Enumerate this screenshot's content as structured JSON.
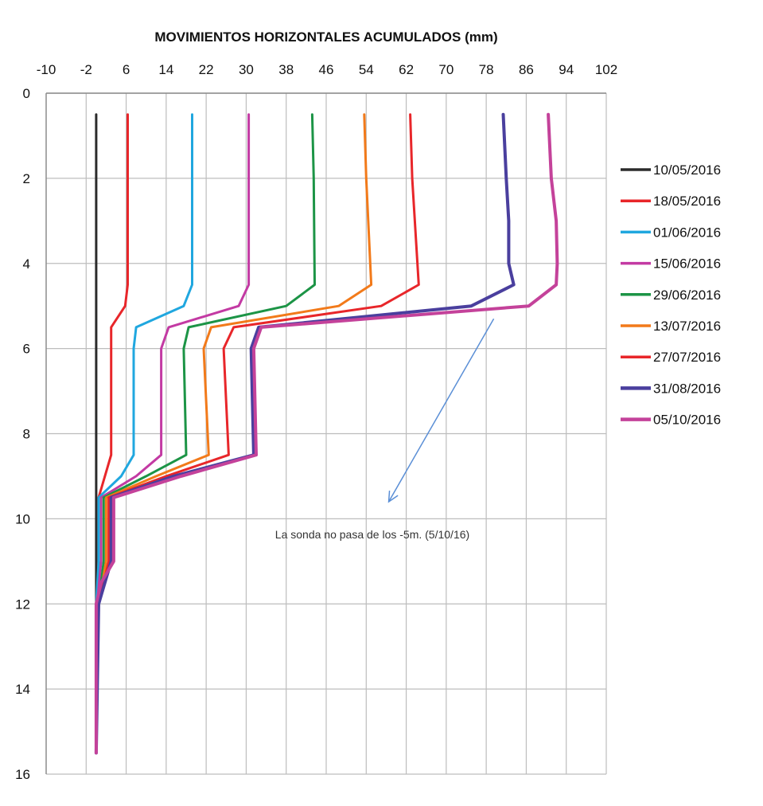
{
  "chart_data": {
    "type": "line",
    "title": "MOVIMIENTOS HORIZONTALES ACUMULADOS (mm)",
    "xlabel": "",
    "ylabel": "",
    "x_ticks": [
      -10,
      -2,
      6,
      14,
      22,
      30,
      38,
      46,
      54,
      62,
      70,
      78,
      86,
      94,
      102
    ],
    "y_ticks": [
      0,
      2,
      4,
      6,
      8,
      10,
      12,
      14,
      16
    ],
    "xlim": [
      -10,
      102
    ],
    "ylim": [
      0,
      16
    ],
    "y_inverted": true,
    "x_axis_position": "top",
    "grid": true,
    "legend_position": "right",
    "series": [
      {
        "name": "10/05/2016",
        "color": "#2b2b2b",
        "points": [
          [
            0,
            0.5
          ],
          [
            0,
            2
          ],
          [
            0,
            4
          ],
          [
            0,
            6
          ],
          [
            0,
            8
          ],
          [
            0,
            9.5
          ],
          [
            0,
            11
          ],
          [
            0,
            12
          ],
          [
            0,
            15.5
          ]
        ]
      },
      {
        "name": "18/05/2016",
        "color": "#e8262a",
        "points": [
          [
            6.3,
            0.5
          ],
          [
            6.3,
            2
          ],
          [
            6.3,
            4.5
          ],
          [
            5.8,
            5
          ],
          [
            3,
            5.5
          ],
          [
            3,
            8.5
          ],
          [
            0.5,
            9.5
          ],
          [
            0.5,
            11
          ],
          [
            0.2,
            12
          ],
          [
            0,
            15.5
          ]
        ]
      },
      {
        "name": "01/06/2016",
        "color": "#20a7df",
        "points": [
          [
            19.2,
            0.5
          ],
          [
            19.2,
            2
          ],
          [
            19.2,
            4.5
          ],
          [
            17.5,
            5
          ],
          [
            8,
            5.5
          ],
          [
            7.5,
            6
          ],
          [
            7.5,
            8.5
          ],
          [
            5,
            9
          ],
          [
            0.5,
            9.5
          ],
          [
            0.5,
            11
          ],
          [
            0,
            12
          ],
          [
            0,
            15.5
          ]
        ]
      },
      {
        "name": "15/06/2016",
        "color": "#c33aa3",
        "points": [
          [
            30.5,
            0.5
          ],
          [
            30.5,
            2
          ],
          [
            30.5,
            4.5
          ],
          [
            28.5,
            5
          ],
          [
            14.5,
            5.5
          ],
          [
            13,
            6
          ],
          [
            13,
            8.5
          ],
          [
            8,
            9
          ],
          [
            1,
            9.5
          ],
          [
            1,
            11
          ],
          [
            0.2,
            12
          ],
          [
            0,
            15.5
          ]
        ]
      },
      {
        "name": "29/06/2016",
        "color": "#1c9446",
        "points": [
          [
            43.2,
            0.5
          ],
          [
            43.5,
            2
          ],
          [
            43.7,
            4.5
          ],
          [
            38,
            5
          ],
          [
            18.5,
            5.5
          ],
          [
            17.5,
            6
          ],
          [
            18,
            8.5
          ],
          [
            10,
            9
          ],
          [
            1.5,
            9.5
          ],
          [
            1.5,
            11
          ],
          [
            0.5,
            12
          ],
          [
            0,
            15.5
          ]
        ]
      },
      {
        "name": "13/07/2016",
        "color": "#f27a1a",
        "points": [
          [
            53.6,
            0.5
          ],
          [
            54,
            2
          ],
          [
            55,
            4.5
          ],
          [
            48.5,
            5
          ],
          [
            23,
            5.5
          ],
          [
            21.5,
            6
          ],
          [
            22.5,
            8.5
          ],
          [
            12,
            9
          ],
          [
            2,
            9.5
          ],
          [
            2,
            11
          ],
          [
            0.5,
            12
          ],
          [
            0,
            15.5
          ]
        ]
      },
      {
        "name": "27/07/2016",
        "color": "#e8262a",
        "points": [
          [
            62.8,
            0.5
          ],
          [
            63.2,
            2
          ],
          [
            64.5,
            4.5
          ],
          [
            57,
            5
          ],
          [
            27.5,
            5.5
          ],
          [
            25.5,
            6
          ],
          [
            26.5,
            8.5
          ],
          [
            14,
            9
          ],
          [
            2.5,
            9.5
          ],
          [
            2.5,
            11
          ],
          [
            0.5,
            12
          ],
          [
            0,
            15.5
          ]
        ]
      },
      {
        "name": "31/08/2016",
        "color": "#4a3f9e",
        "points": [
          [
            81.4,
            0.5
          ],
          [
            82,
            2
          ],
          [
            82.5,
            3
          ],
          [
            82.5,
            4
          ],
          [
            83.5,
            4.5
          ],
          [
            75,
            5
          ],
          [
            32.5,
            5.5
          ],
          [
            31,
            6
          ],
          [
            31.5,
            8.5
          ],
          [
            15.5,
            9
          ],
          [
            3,
            9.5
          ],
          [
            3,
            11
          ],
          [
            0.5,
            12
          ],
          [
            0,
            15.5
          ]
        ]
      },
      {
        "name": "05/10/2016",
        "color": "#c4429a",
        "points": [
          [
            90.4,
            0.5
          ],
          [
            91,
            2
          ],
          [
            92,
            3
          ],
          [
            92.2,
            4
          ],
          [
            92,
            4.5
          ],
          [
            86.5,
            5
          ],
          [
            33,
            5.5
          ],
          [
            31.5,
            6
          ],
          [
            32,
            8.5
          ],
          [
            17,
            9
          ],
          [
            3.5,
            9.5
          ],
          [
            3.5,
            11
          ],
          [
            1,
            11.5
          ],
          [
            0,
            12
          ],
          [
            0,
            15.5
          ]
        ]
      }
    ],
    "annotations": [
      {
        "text": "La sonda no pasa de los  -5m. (5/10/16)",
        "arrow_from": [
          79.5,
          5.3
        ],
        "arrow_to": [
          58.5,
          9.6
        ]
      }
    ]
  }
}
